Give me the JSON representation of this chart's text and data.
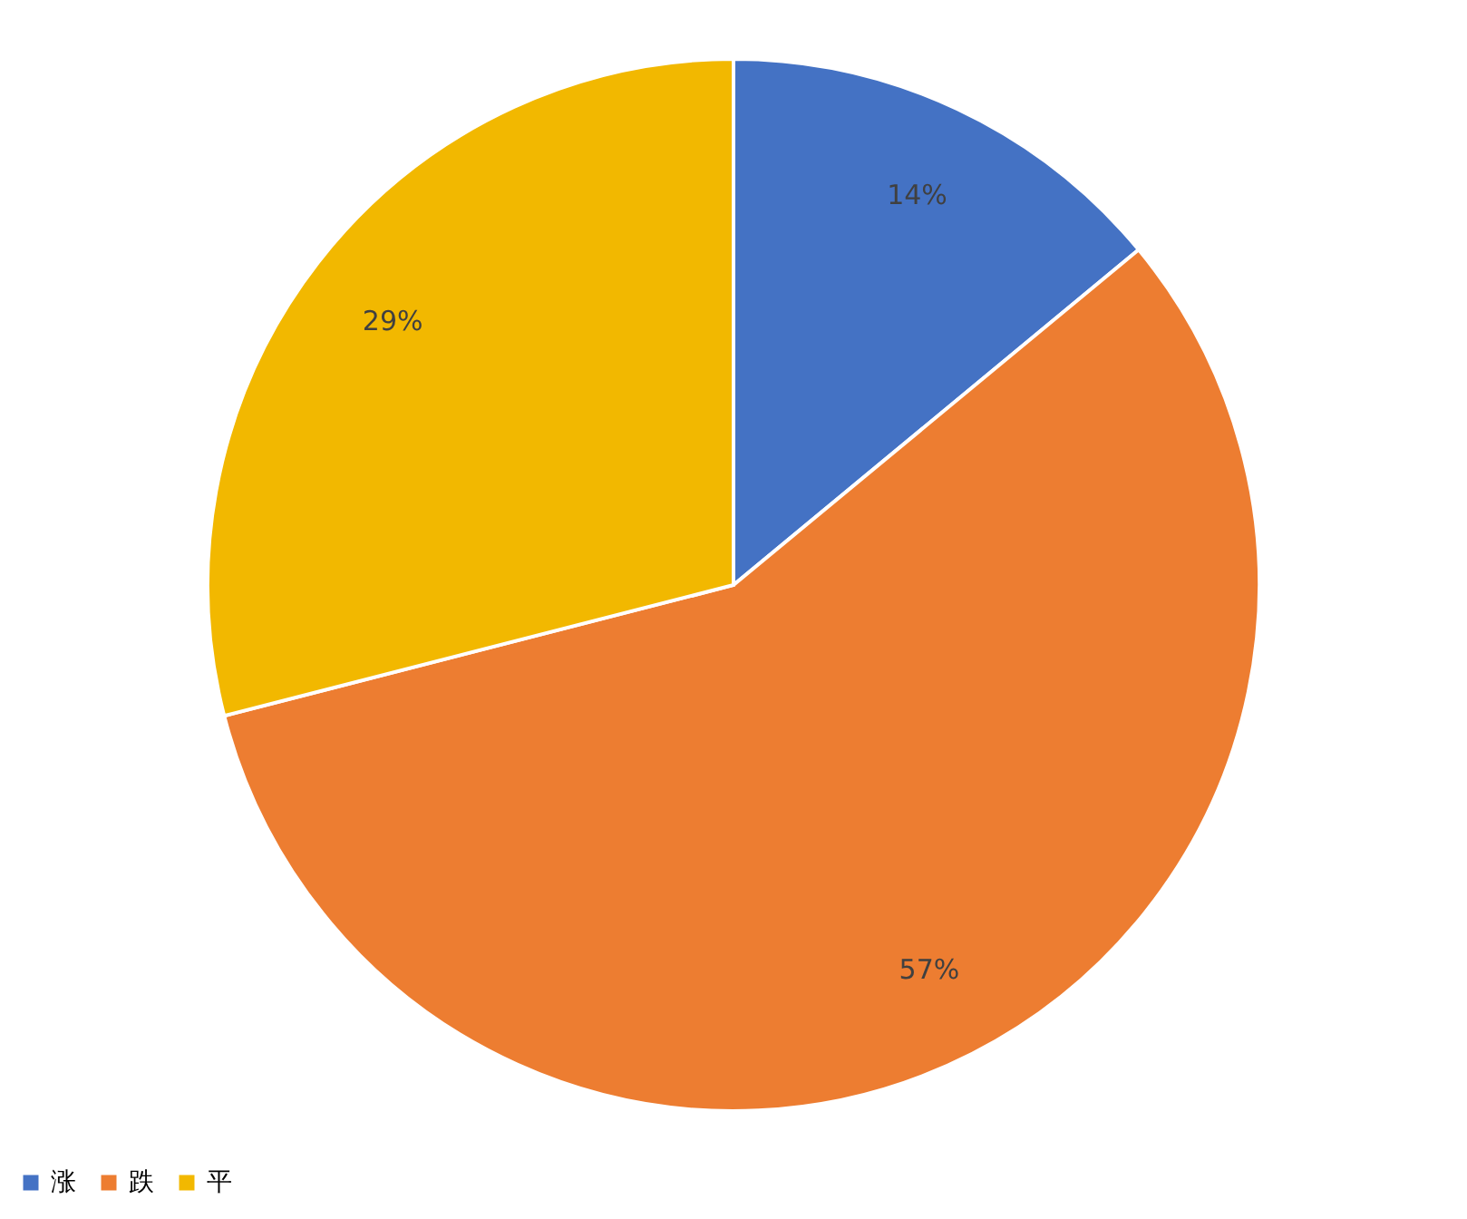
{
  "chart_data": {
    "type": "pie",
    "categories": [
      "涨",
      "跌",
      "平"
    ],
    "values": [
      14,
      57,
      29
    ],
    "colors": [
      "#4472c4",
      "#ed7d31",
      "#f2b800"
    ],
    "value_labels": [
      "14%",
      "57%",
      "29%"
    ],
    "legend": "bottom"
  }
}
